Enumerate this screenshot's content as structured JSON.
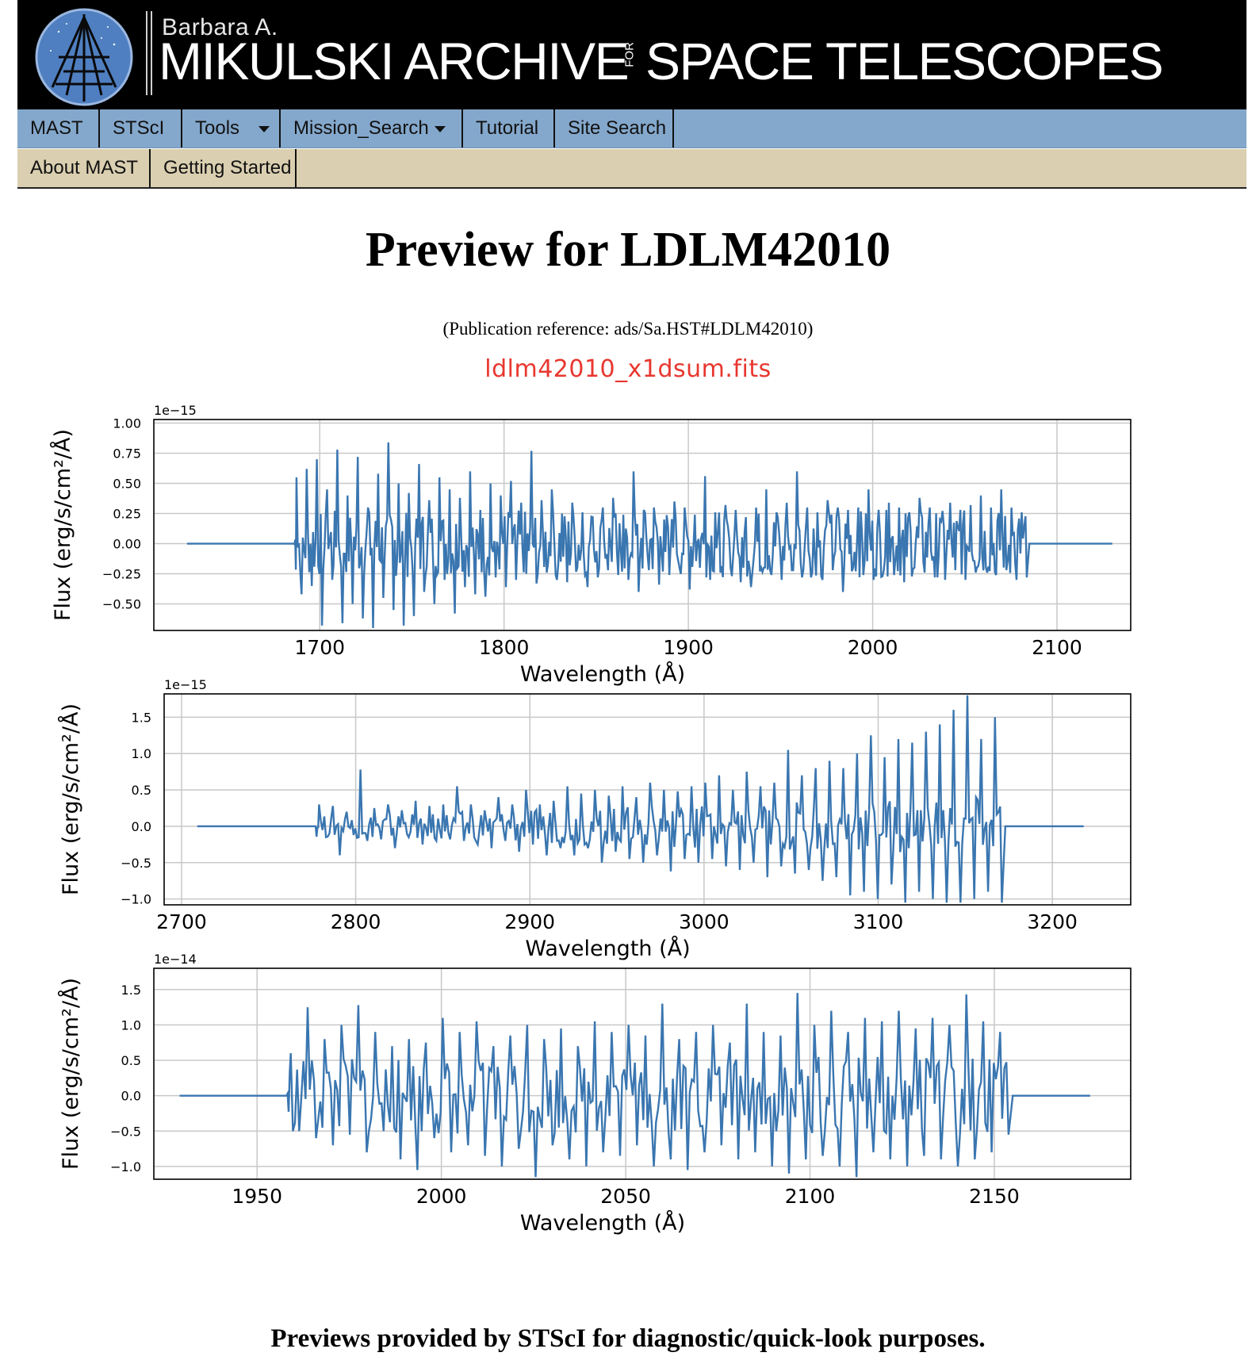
{
  "banner": {
    "subtitle": "Barbara A.",
    "title_left": "MIKULSKI ARCHIVE",
    "title_for": "FOR",
    "title_right": "SPACE TELESCOPES"
  },
  "nav": {
    "primary": [
      {
        "label": "MAST",
        "dropdown": false
      },
      {
        "label": "STScI",
        "dropdown": false
      },
      {
        "label": "Tools",
        "dropdown": true
      },
      {
        "label": "Mission_Search",
        "dropdown": true
      },
      {
        "label": "Tutorial",
        "dropdown": false
      },
      {
        "label": "Site Search",
        "dropdown": false
      }
    ],
    "secondary": [
      {
        "label": "About MAST"
      },
      {
        "label": "Getting Started"
      }
    ]
  },
  "page": {
    "title": "Preview for LDLM42010",
    "pubref": "(Publication reference: ads/Sa.HST#LDLM42010)",
    "filename": "ldlm42010_x1dsum.fits",
    "footer": "Previews provided by STScI for diagnostic/quick-look purposes."
  },
  "colors": {
    "banner_bg": "#000000",
    "nav_primary_bg": "#84a8cc",
    "nav_secondary_bg": "#dacfb0",
    "filename": "#e8372f",
    "series_line": "#3a76b0"
  },
  "chart_data": [
    {
      "type": "line",
      "offset_label": "1e−15",
      "xlabel": "Wavelength (Å)",
      "ylabel": "Flux (erg/s/cm²/Å)",
      "xlim": [
        1610,
        2140
      ],
      "ylim": [
        -0.72,
        1.03
      ],
      "xticks": [
        "1700",
        "1800",
        "1900",
        "2000",
        "2100"
      ],
      "yticks": [
        "1.00",
        "0.75",
        "0.50",
        "0.25",
        "0.00",
        "−0.25",
        "−0.50"
      ],
      "grid": true,
      "series": [
        {
          "flat_start": 1628,
          "data_start": 1686,
          "data_end": 2085,
          "flat_end": 2130,
          "noise_amplitude": 0.28,
          "y": [
            0.55,
            -0.42,
            0.62,
            -0.35,
            0.7,
            -0.68,
            0.45,
            -0.3,
            0.78,
            -0.66,
            0.4,
            -0.5,
            0.72,
            -0.62,
            0.3,
            -0.7,
            0.58,
            -0.45,
            0.84,
            -0.55,
            0.5,
            -0.68,
            0.42,
            -0.6,
            0.66,
            -0.4,
            0.36,
            -0.5,
            0.55,
            -0.3,
            0.45,
            -0.58,
            0.38,
            -0.36,
            0.6,
            -0.42,
            0.28,
            -0.44,
            0.5,
            -0.28,
            0.4,
            -0.36,
            0.52,
            -0.3,
            0.34,
            -0.25,
            0.77,
            -0.33,
            0.36,
            -0.24,
            0.45,
            -0.3,
            0.25,
            -0.32,
            0.34,
            -0.2,
            0.26,
            -0.36,
            0.22,
            -0.28,
            0.3,
            -0.22,
            0.38,
            -0.26,
            0.24,
            -0.3,
            0.6,
            -0.4,
            0.28,
            -0.22,
            0.3,
            -0.34,
            0.2,
            -0.26,
            0.35,
            -0.2,
            0.3,
            -0.38,
            0.24,
            -0.2,
            0.56,
            -0.3,
            0.26,
            -0.24,
            0.32,
            -0.2,
            0.28,
            -0.32,
            0.22,
            -0.36,
            0.3,
            -0.2,
            0.45,
            -0.26,
            0.26,
            -0.3,
            0.34,
            -0.22,
            0.6,
            -0.28,
            0.3,
            -0.24,
            0.26,
            -0.3,
            0.36,
            -0.22,
            0.3,
            -0.4,
            0.28,
            -0.2,
            0.3,
            -0.26,
            0.45,
            -0.3,
            0.28,
            -0.22,
            0.34,
            -0.26,
            0.3,
            -0.32,
            0.26,
            -0.2,
            0.38,
            -0.24,
            0.3,
            -0.28,
            0.2,
            -0.3,
            0.34,
            -0.22,
            0.28,
            -0.3,
            0.32,
            -0.24,
            0.4,
            -0.2,
            0.3,
            -0.26,
            0.45,
            -0.22,
            0.3,
            -0.3,
            0.26,
            -0.28
          ]
        }
      ]
    },
    {
      "type": "line",
      "offset_label": "1e−15",
      "xlabel": "Wavelength (Å)",
      "ylabel": "Flux (erg/s/cm²/Å)",
      "xlim": [
        2690,
        3245
      ],
      "ylim": [
        -1.08,
        1.82
      ],
      "xticks": [
        "2700",
        "2800",
        "2900",
        "3000",
        "3100",
        "3200"
      ],
      "yticks": [
        "1.5",
        "1.0",
        "0.5",
        "0.0",
        "−0.5",
        "−1.0"
      ],
      "grid": true,
      "series": [
        {
          "flat_start": 2709,
          "data_start": 2777,
          "data_end": 3173,
          "flat_end": 3218,
          "noise_amplitude": 0.35,
          "y": [
            0.3,
            -0.15,
            0.28,
            -0.4,
            0.2,
            -0.12,
            0.78,
            -0.2,
            0.25,
            -0.18,
            0.3,
            -0.3,
            0.22,
            -0.15,
            0.35,
            -0.25,
            0.28,
            -0.2,
            0.3,
            -0.18,
            0.55,
            -0.2,
            0.3,
            -0.25,
            0.22,
            -0.3,
            0.4,
            -0.2,
            0.3,
            -0.35,
            0.5,
            -0.25,
            0.3,
            -0.4,
            0.35,
            -0.3,
            0.55,
            -0.4,
            0.45,
            -0.3,
            0.5,
            -0.5,
            0.42,
            -0.35,
            0.55,
            -0.45,
            0.4,
            -0.5,
            0.6,
            -0.4,
            0.5,
            -0.62,
            0.48,
            -0.45,
            0.55,
            -0.5,
            0.6,
            -0.45,
            0.7,
            -0.55,
            0.5,
            -0.6,
            0.75,
            -0.5,
            0.55,
            -0.7,
            0.6,
            -0.55,
            1.05,
            -0.65,
            0.7,
            -0.6,
            0.8,
            -0.75,
            0.9,
            -0.7,
            0.8,
            -0.95,
            1.0,
            -0.9,
            1.25,
            -1.0,
            0.95,
            -0.8,
            1.2,
            -1.05,
            1.15,
            -0.9,
            1.3,
            -1.0,
            1.4,
            -1.05,
            1.6,
            -1.05,
            1.8,
            -1.0,
            1.2,
            -0.9,
            1.5,
            -1.05
          ]
        }
      ]
    },
    {
      "type": "line",
      "offset_label": "1e−14",
      "xlabel": "Wavelength (Å)",
      "ylabel": "Flux (erg/s/cm²/Å)",
      "xlim": [
        1922,
        2187
      ],
      "ylim": [
        -1.18,
        1.8
      ],
      "xticks": [
        "1950",
        "2000",
        "2050",
        "2100",
        "2150"
      ],
      "yticks": [
        "1.5",
        "1.0",
        "0.5",
        "0.0",
        "−0.5",
        "−1.0"
      ],
      "grid": true,
      "series": [
        {
          "flat_start": 1929,
          "data_start": 1958,
          "data_end": 2155,
          "flat_end": 2176,
          "noise_amplitude": 0.55,
          "y": [
            0.6,
            -0.5,
            1.25,
            -0.6,
            0.8,
            -0.7,
            1.0,
            -0.55,
            1.28,
            -0.8,
            0.9,
            -0.5,
            0.7,
            -0.9,
            0.8,
            -1.05,
            0.75,
            -0.6,
            1.1,
            -0.8,
            0.9,
            -0.7,
            1.05,
            -0.85,
            0.7,
            -1.0,
            0.85,
            -0.75,
            1.0,
            -1.15,
            0.8,
            -0.7,
            0.95,
            -0.9,
            0.7,
            -1.0,
            1.05,
            -0.8,
            0.9,
            -0.85,
            1.0,
            -0.7,
            0.85,
            -1.0,
            1.3,
            -0.9,
            0.8,
            -1.05,
            0.9,
            -0.8,
            1.0,
            -0.7,
            0.75,
            -0.9,
            1.3,
            -0.8,
            0.9,
            -1.0,
            0.85,
            -1.1,
            1.45,
            -0.9,
            1.0,
            -0.85,
            1.2,
            -1.0,
            0.9,
            -1.15,
            1.1,
            -0.8,
            1.05,
            -0.9,
            1.2,
            -1.0,
            0.95,
            -0.85,
            1.1,
            -0.9,
            1.0,
            -1.0,
            1.43,
            -0.9,
            1.05,
            -0.8,
            0.9,
            -0.55
          ]
        }
      ]
    }
  ]
}
